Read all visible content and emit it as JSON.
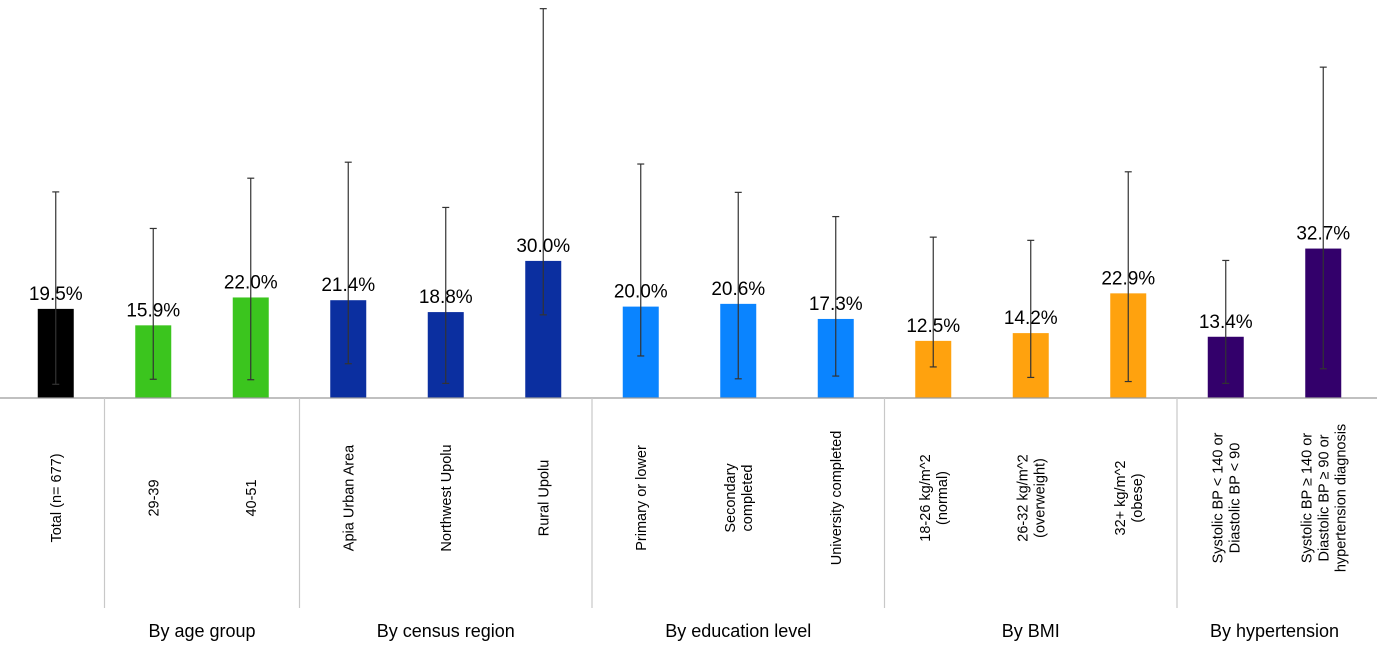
{
  "chart_data": {
    "type": "bar",
    "categories": [
      [
        "Total (n= 677)"
      ],
      [
        "29-39"
      ],
      [
        "40-51"
      ],
      [
        "Apia Urban Area"
      ],
      [
        "Northwest Upolu"
      ],
      [
        "Rural Upolu"
      ],
      [
        "Primary or lower"
      ],
      [
        "Secondary",
        "completed"
      ],
      [
        "University completed"
      ],
      [
        "18-26 kg/m^2",
        "(normal)"
      ],
      [
        "26-32 kg/m^2",
        "(overweight)"
      ],
      [
        "32+ kg/m^2",
        "(obese)"
      ],
      [
        "Systolic BP < 140 or",
        "Diastolic BP < 90"
      ],
      [
        "Systolic BP ≥ 140 or",
        "Diastolic BP ≥ 90 or",
        "hypertension diagnosis"
      ]
    ],
    "values": [
      19.5,
      15.9,
      22.0,
      21.4,
      18.8,
      30.0,
      20.0,
      20.6,
      17.3,
      12.5,
      14.2,
      22.9,
      13.4,
      32.7
    ],
    "value_labels": [
      "19.5%",
      "15.9%",
      "22.0%",
      "21.4%",
      "18.8%",
      "30.0%",
      "20.0%",
      "20.6%",
      "17.3%",
      "12.5%",
      "14.2%",
      "22.9%",
      "13.4%",
      "32.7%"
    ],
    "error_low": [
      3.0,
      4.1,
      4.0,
      7.5,
      3.2,
      18.2,
      9.2,
      4.2,
      4.8,
      6.8,
      4.5,
      3.6,
      3.2,
      6.4
    ],
    "error_high": [
      45.1,
      37.1,
      48.1,
      51.6,
      41.7,
      85.2,
      51.2,
      45.0,
      39.7,
      35.2,
      34.5,
      49.5,
      30.1,
      72.4
    ],
    "colors": [
      "#000000",
      "#3bc51e",
      "#3bc51e",
      "#0b2fa0",
      "#0b2fa0",
      "#0b2fa0",
      "#0a84ff",
      "#0a84ff",
      "#0a84ff",
      "#ffa20e",
      "#ffa20e",
      "#ffa20e",
      "#33006b",
      "#33006b"
    ],
    "groups": [
      {
        "label": "",
        "start": 0,
        "end": 0
      },
      {
        "label": "By age group",
        "start": 1,
        "end": 2
      },
      {
        "label": "By census region",
        "start": 3,
        "end": 5
      },
      {
        "label": "By education level",
        "start": 6,
        "end": 8
      },
      {
        "label": "By BMI",
        "start": 9,
        "end": 11
      },
      {
        "label": "By hypertension",
        "start": 12,
        "end": 13
      }
    ],
    "ylim": [
      0,
      86
    ],
    "title": "",
    "xlabel": "",
    "ylabel": "",
    "grid": false,
    "legend": "none"
  }
}
